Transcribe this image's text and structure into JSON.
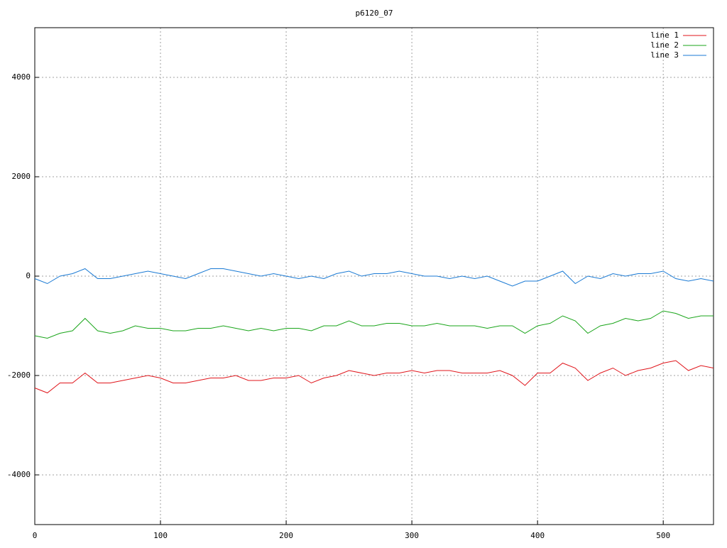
{
  "chart_data": {
    "type": "line",
    "title": "p6120_07",
    "x": [
      0,
      10,
      20,
      30,
      40,
      50,
      60,
      70,
      80,
      90,
      100,
      110,
      120,
      130,
      140,
      150,
      160,
      170,
      180,
      190,
      200,
      210,
      220,
      230,
      240,
      250,
      260,
      270,
      280,
      290,
      300,
      310,
      320,
      330,
      340,
      350,
      360,
      370,
      380,
      390,
      400,
      410,
      420,
      430,
      440,
      450,
      460,
      470,
      480,
      490,
      500,
      510,
      520,
      530,
      540
    ],
    "series": [
      {
        "name": "line 1",
        "color": "#e0151b",
        "values": [
          -2250,
          -2350,
          -2150,
          -2150,
          -1950,
          -2150,
          -2150,
          -2100,
          -2050,
          -2000,
          -2050,
          -2150,
          -2150,
          -2100,
          -2050,
          -2050,
          -2000,
          -2100,
          -2100,
          -2050,
          -2050,
          -2000,
          -2150,
          -2050,
          -2000,
          -1900,
          -1950,
          -2000,
          -1950,
          -1950,
          -1900,
          -1950,
          -1900,
          -1900,
          -1950,
          -1950,
          -1950,
          -1900,
          -2000,
          -2200,
          -1950,
          -1950,
          -1750,
          -1850,
          -2100,
          -1950,
          -1850,
          -2000,
          -1900,
          -1850,
          -1750,
          -1700,
          -1900,
          -1800,
          -1850
        ]
      },
      {
        "name": "line 2",
        "color": "#1aa51a",
        "values": [
          -1200,
          -1250,
          -1150,
          -1100,
          -850,
          -1100,
          -1150,
          -1100,
          -1000,
          -1050,
          -1050,
          -1100,
          -1100,
          -1050,
          -1050,
          -1000,
          -1050,
          -1100,
          -1050,
          -1100,
          -1050,
          -1050,
          -1100,
          -1000,
          -1000,
          -900,
          -1000,
          -1000,
          -950,
          -950,
          -1000,
          -1000,
          -950,
          -1000,
          -1000,
          -1000,
          -1050,
          -1000,
          -1000,
          -1150,
          -1000,
          -950,
          -800,
          -900,
          -1150,
          -1000,
          -950,
          -850,
          -900,
          -850,
          -700,
          -750,
          -850,
          -800,
          -800
        ]
      },
      {
        "name": "line 3",
        "color": "#1a7ad4",
        "values": [
          -50,
          -150,
          0,
          50,
          150,
          -50,
          -50,
          0,
          50,
          100,
          50,
          0,
          -50,
          50,
          150,
          150,
          100,
          50,
          0,
          50,
          0,
          -50,
          0,
          -50,
          50,
          100,
          0,
          50,
          50,
          100,
          50,
          0,
          0,
          -50,
          0,
          -50,
          0,
          -100,
          -200,
          -100,
          -100,
          0,
          100,
          -150,
          0,
          -50,
          50,
          0,
          50,
          50,
          100,
          -50,
          -100,
          -50,
          -100
        ]
      }
    ],
    "xlim": [
      0,
      540
    ],
    "ylim": [
      -5000,
      5000
    ],
    "xticks": [
      0,
      100,
      200,
      300,
      400,
      500
    ],
    "yticks": [
      -4000,
      -2000,
      0,
      2000,
      4000
    ],
    "grid": true
  }
}
